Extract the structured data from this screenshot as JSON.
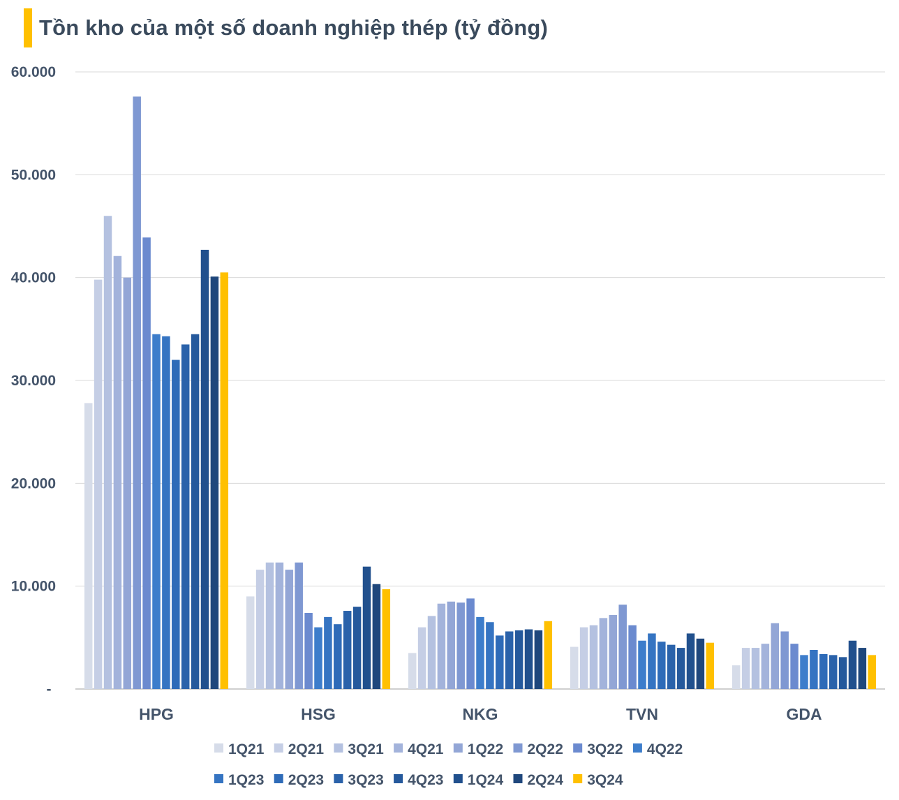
{
  "chart_data": {
    "type": "bar",
    "title": "Tồn kho của một số doanh nghiệp thép (tỷ đồng)",
    "categories": [
      "HPG",
      "HSG",
      "NKG",
      "TVN",
      "GDA"
    ],
    "ylim": [
      0,
      60000
    ],
    "yticks": [
      {
        "value": 0,
        "label": "-"
      },
      {
        "value": 10000,
        "label": "10.000"
      },
      {
        "value": 20000,
        "label": "20.000"
      },
      {
        "value": 30000,
        "label": "30.000"
      },
      {
        "value": 40000,
        "label": "40.000"
      },
      {
        "value": 50000,
        "label": "50.000"
      },
      {
        "value": 60000,
        "label": "60.000"
      }
    ],
    "grid": true,
    "legend_position": "bottom",
    "series": [
      {
        "name": "1Q21",
        "color": "#D6DCE9",
        "values": [
          27800,
          9000,
          3500,
          4100,
          2300
        ]
      },
      {
        "name": "2Q21",
        "color": "#C5CEE5",
        "values": [
          39800,
          11600,
          6000,
          6000,
          4000
        ]
      },
      {
        "name": "3Q21",
        "color": "#B4C1E0",
        "values": [
          46000,
          12300,
          7100,
          6200,
          4000
        ]
      },
      {
        "name": "4Q21",
        "color": "#A3B3DB",
        "values": [
          42100,
          12300,
          8300,
          6900,
          4400
        ]
      },
      {
        "name": "1Q22",
        "color": "#93A6D6",
        "values": [
          40000,
          11600,
          8500,
          7200,
          6400
        ]
      },
      {
        "name": "2Q22",
        "color": "#7F98D2",
        "values": [
          57600,
          12300,
          8400,
          8200,
          5600
        ]
      },
      {
        "name": "3Q22",
        "color": "#6B8ACF",
        "values": [
          43900,
          7400,
          8800,
          6200,
          4400
        ]
      },
      {
        "name": "4Q22",
        "color": "#3D7DCB",
        "values": [
          34500,
          6000,
          7000,
          4700,
          3300
        ]
      },
      {
        "name": "1Q23",
        "color": "#3574C2",
        "values": [
          34300,
          7000,
          6500,
          5400,
          3800
        ]
      },
      {
        "name": "2Q23",
        "color": "#2E6BB8",
        "values": [
          32000,
          6300,
          5200,
          4600,
          3400
        ]
      },
      {
        "name": "3Q23",
        "color": "#2A62AA",
        "values": [
          33500,
          7600,
          5600,
          4300,
          3300
        ]
      },
      {
        "name": "4Q23",
        "color": "#25599C",
        "values": [
          34500,
          8000,
          5700,
          4000,
          3100
        ]
      },
      {
        "name": "1Q24",
        "color": "#21508D",
        "values": [
          42700,
          11900,
          5800,
          5400,
          4700
        ]
      },
      {
        "name": "2Q24",
        "color": "#1F477C",
        "values": [
          40100,
          10200,
          5700,
          4900,
          4000
        ]
      },
      {
        "name": "3Q24",
        "color": "#FFC000",
        "values": [
          40500,
          9700,
          6600,
          4500,
          3300
        ]
      }
    ]
  }
}
